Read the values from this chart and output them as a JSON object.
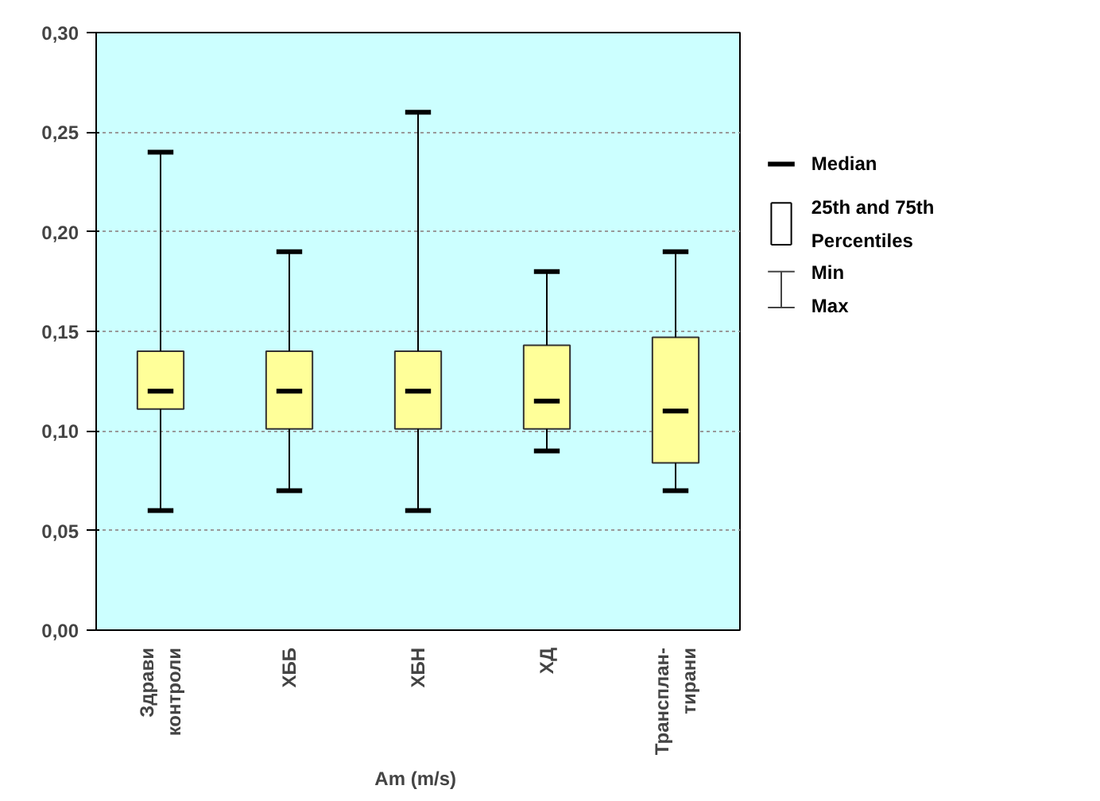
{
  "chart_data": {
    "type": "box",
    "xlabel": "Am  (m/s)",
    "categories": [
      "Здрави\nконтроли",
      "ХББ",
      "ХБН",
      "ХД",
      "Трансплан-\nтирани"
    ],
    "boxes": [
      {
        "low": 0.06,
        "q1": 0.111,
        "median": 0.12,
        "q3": 0.14,
        "high": 0.24
      },
      {
        "low": 0.07,
        "q1": 0.101,
        "median": 0.12,
        "q3": 0.14,
        "high": 0.19
      },
      {
        "low": 0.06,
        "q1": 0.101,
        "median": 0.12,
        "q3": 0.14,
        "high": 0.26
      },
      {
        "low": 0.09,
        "q1": 0.101,
        "median": 0.115,
        "q3": 0.143,
        "high": 0.18
      },
      {
        "low": 0.07,
        "q1": 0.084,
        "median": 0.11,
        "q3": 0.147,
        "high": 0.19
      }
    ],
    "color": "#ffff99",
    "ylim": [
      0,
      0.3
    ],
    "yticks": [
      {
        "value": 0,
        "label": "0,00"
      },
      {
        "value": 0.05,
        "label": "0,05"
      },
      {
        "value": 0.1,
        "label": "0,10"
      },
      {
        "value": 0.15,
        "label": "0,15"
      },
      {
        "value": 0.2,
        "label": "0,20"
      },
      {
        "value": 0.25,
        "label": "0,25"
      },
      {
        "value": 0.3,
        "label": "0,30"
      }
    ],
    "grid": "y",
    "annotations": [
      "Median",
      "25th and 75th\nPercentiles",
      "Min\nMax"
    ]
  }
}
